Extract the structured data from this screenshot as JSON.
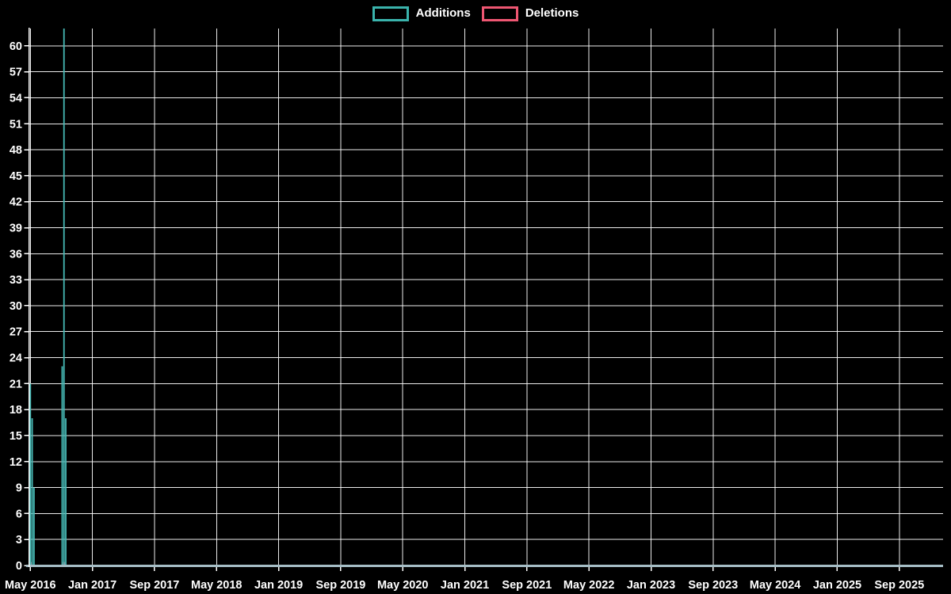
{
  "legend": {
    "items": [
      {
        "label": "Additions",
        "color": "#3ab3ac"
      },
      {
        "label": "Deletions",
        "color": "#ee5672"
      }
    ]
  },
  "colors": {
    "background": "#000000",
    "grid": "#ffffff",
    "axis_line": "#ffffff",
    "baseline": "#a6bec6",
    "tick_text": "#ffffff",
    "additions": "#47bab6",
    "deletions": "#ee5672"
  },
  "chart_data": {
    "type": "bar",
    "title": "",
    "xlabel": "",
    "ylabel": "",
    "grid": true,
    "legend_position": "top-center",
    "y_axis": {
      "min": 0,
      "max": 62,
      "tick_step": 3,
      "tick_labels": [
        "0",
        "3",
        "6",
        "9",
        "12",
        "15",
        "18",
        "21",
        "24",
        "27",
        "30",
        "33",
        "36",
        "39",
        "42",
        "45",
        "48",
        "51",
        "54",
        "57",
        "60"
      ]
    },
    "x_axis": {
      "unit": "months",
      "tick_interval_months": 8,
      "tick_labels": [
        "May 2016",
        "Jan 2017",
        "Sep 2017",
        "May 2018",
        "Jan 2019",
        "Sep 2019",
        "May 2020",
        "Jan 2021",
        "Sep 2021",
        "May 2022",
        "Jan 2023",
        "Sep 2023",
        "May 2024",
        "Jan 2025",
        "Sep 2025"
      ]
    },
    "series": [
      {
        "name": "Additions",
        "color": "#47bab6",
        "points": [
          {
            "date": "2016-05-01",
            "value": 21
          },
          {
            "date": "2016-05-08",
            "value": 17
          },
          {
            "date": "2016-05-15",
            "value": 9
          },
          {
            "date": "2016-09-04",
            "value": 23
          },
          {
            "date": "2016-09-11",
            "value": 62
          },
          {
            "date": "2016-09-18",
            "value": 17
          }
        ]
      },
      {
        "name": "Deletions",
        "color": "#ee5672",
        "points": [
          {
            "date": "2016-05-01",
            "value": 0.4
          },
          {
            "date": "2016-09-11",
            "value": 0.4
          }
        ]
      }
    ]
  }
}
